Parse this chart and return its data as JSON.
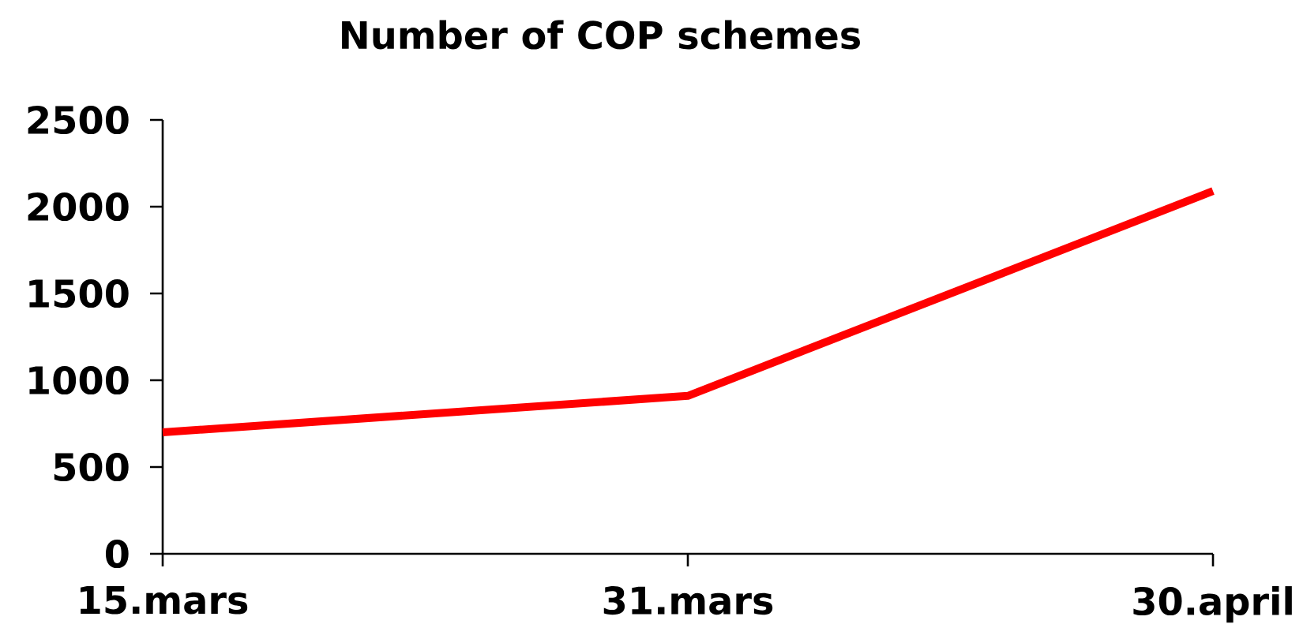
{
  "chart_data": {
    "type": "line",
    "title": "Number of COP schemes",
    "categories": [
      "15.mars",
      "31.mars",
      "30.april"
    ],
    "series": [
      {
        "color": "#ff0000",
        "values": [
          700,
          910,
          2090
        ]
      }
    ],
    "ylim": [
      0,
      2500
    ],
    "yticks": [
      0,
      500,
      1000,
      1500,
      2000,
      2500
    ],
    "marker": "none",
    "line_style": "solid"
  }
}
